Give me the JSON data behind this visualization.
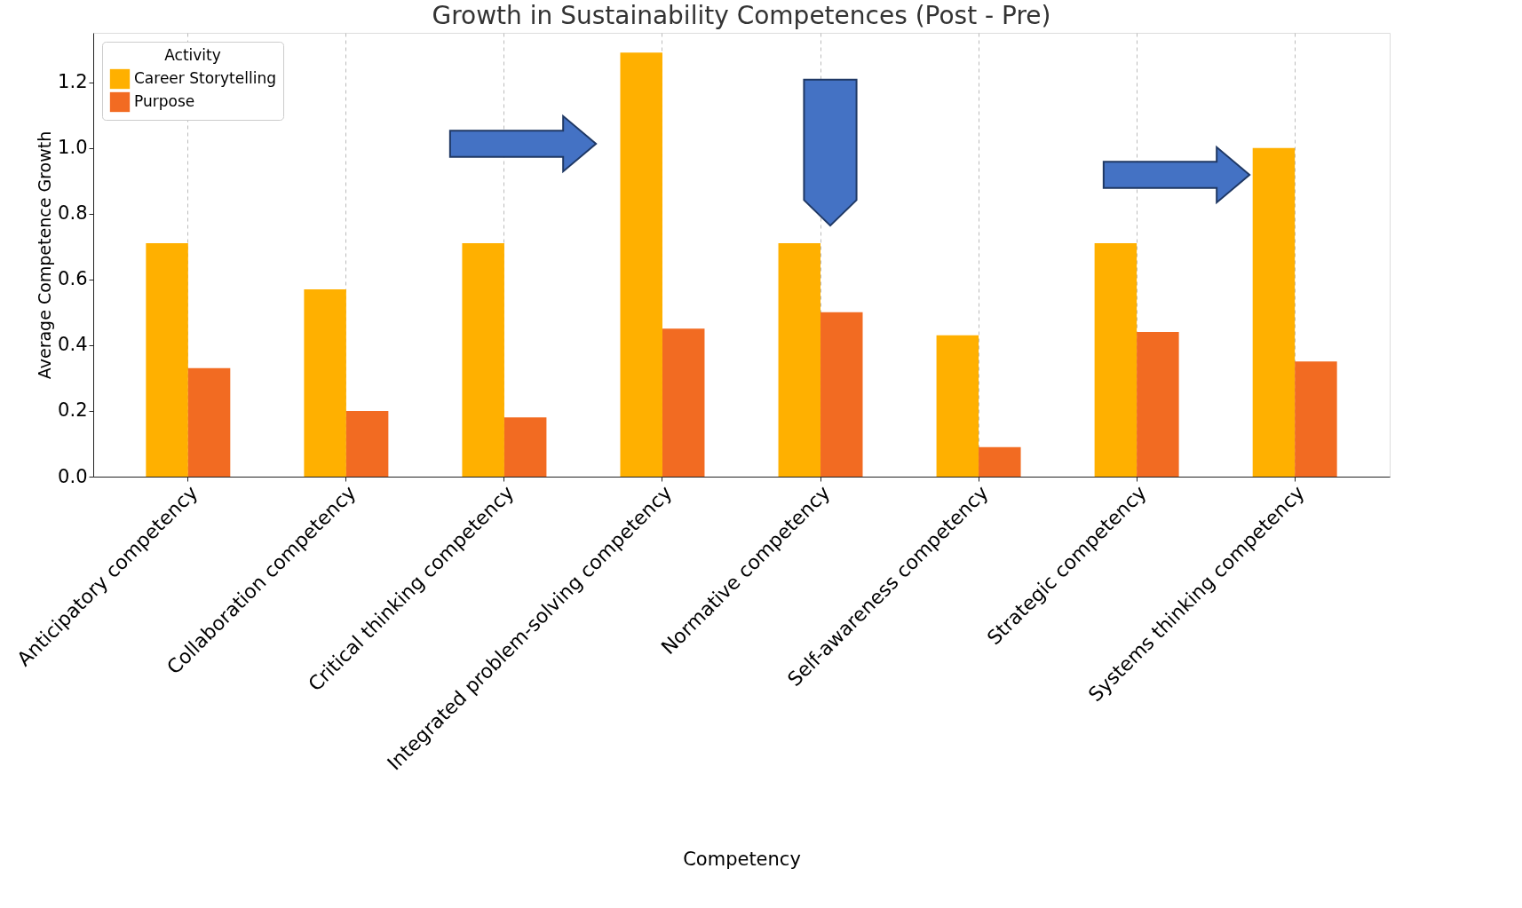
{
  "chart_data": {
    "type": "bar",
    "title": "Growth in Sustainability Competences (Post - Pre)",
    "xlabel": "Competency",
    "ylabel": "Average Competence Growth",
    "legend_title": "Activity",
    "categories": [
      "Anticipatory  competency",
      "Collaboration competency",
      "Critical thinking competency",
      "Integrated problem-solving competency",
      "Normative competency",
      "Self-awareness competency",
      "Strategic competency",
      "Systems thinking competency"
    ],
    "series": [
      {
        "name": "Career Storytelling",
        "color": "#ffb000",
        "values": [
          0.71,
          0.57,
          0.71,
          1.29,
          0.71,
          0.43,
          0.71,
          1.0
        ]
      },
      {
        "name": "Purpose",
        "color": "#f26b22",
        "values": [
          0.33,
          0.2,
          0.18,
          0.45,
          0.5,
          0.09,
          0.44,
          0.35
        ]
      }
    ],
    "ylim": [
      0,
      1.35
    ],
    "yticks": [
      {
        "value": 0,
        "label": "0.0"
      },
      0.2,
      0.4,
      0.6,
      0.8,
      {
        "value": 1,
        "label": "1.0"
      },
      1.2
    ],
    "grid": "x",
    "legend": "top left"
  }
}
